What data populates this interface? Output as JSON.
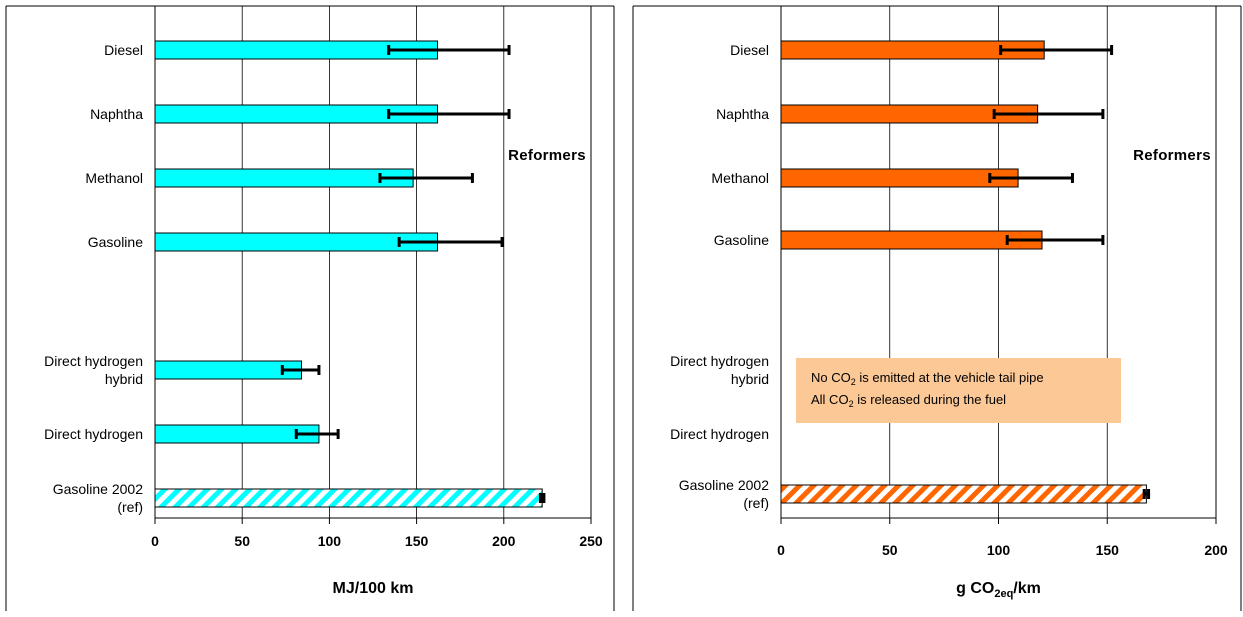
{
  "chart_data": [
    {
      "type": "bar",
      "orientation": "horizontal",
      "categories": [
        "Diesel",
        "Naphtha",
        "Methanol",
        "Gasoline",
        "Direct hydrogen hybrid",
        "Direct hydrogen",
        "Gasoline 2002 (ref)"
      ],
      "category_lines": [
        [
          "Diesel"
        ],
        [
          "Naphtha"
        ],
        [
          "Methanol"
        ],
        [
          "Gasoline"
        ],
        [
          "Direct hydrogen",
          "hybrid"
        ],
        [
          "Direct hydrogen"
        ],
        [
          "Gasoline 2002",
          "(ref)"
        ]
      ],
      "values": [
        162,
        162,
        148,
        162,
        84,
        94,
        222
      ],
      "error_low": [
        134,
        134,
        129,
        140,
        73,
        81,
        221
      ],
      "error_high": [
        203,
        203,
        182,
        199,
        94,
        105,
        223
      ],
      "bar_color": "#00ffff",
      "reference_index": 6,
      "reference_pattern": "diagonal-hatch",
      "group_label": "Reformers",
      "xlabel": "MJ/100 km",
      "xlim": [
        0,
        250
      ],
      "xticks": [
        0,
        50,
        100,
        150,
        200,
        250
      ],
      "grid": "vertical"
    },
    {
      "type": "bar",
      "orientation": "horizontal",
      "categories": [
        "Diesel",
        "Naphtha",
        "Methanol",
        "Gasoline",
        "Direct hydrogen hybrid",
        "Direct hydrogen",
        "Gasoline 2002 (ref)"
      ],
      "category_lines": [
        [
          "Diesel"
        ],
        [
          "Naphtha"
        ],
        [
          "Methanol"
        ],
        [
          "Gasoline"
        ],
        [
          "Direct hydrogen",
          "hybrid"
        ],
        [
          "Direct hydrogen"
        ],
        [
          "Gasoline 2002",
          "(ref)"
        ]
      ],
      "values": [
        121,
        118,
        109,
        120,
        null,
        null,
        168
      ],
      "error_low": [
        101,
        98,
        96,
        104,
        null,
        null,
        167
      ],
      "error_high": [
        152,
        148,
        134,
        148,
        null,
        null,
        169
      ],
      "bar_color": "#ff6600",
      "reference_index": 6,
      "reference_pattern": "diagonal-hatch",
      "group_label": "Reformers",
      "xlabel_main": "g CO",
      "xlabel_sub": "2eq",
      "xlabel_suffix": "/km",
      "xlim": [
        0,
        200
      ],
      "xticks": [
        0,
        50,
        100,
        150,
        200
      ],
      "grid": "vertical",
      "note": {
        "line1_pre": "No CO",
        "line1_sub": "2",
        "line1_post": " is emitted at the vehicle tail pipe",
        "line2_pre": "All CO",
        "line2_sub": "2",
        "line2_post": " is released during the fuel",
        "fill": "#fcc896"
      }
    }
  ]
}
